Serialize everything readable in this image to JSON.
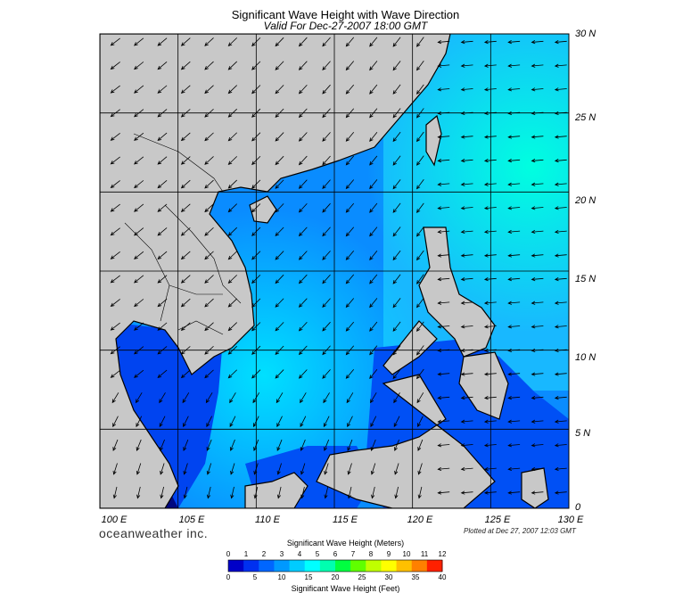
{
  "title": "Significant Wave Height with Wave Direction",
  "subtitle": "Valid For Dec-27-2007 18:00 GMT",
  "lat_labels": [
    "30 N",
    "25 N",
    "20 N",
    "15 N",
    "10 N",
    "5 N",
    "0"
  ],
  "lon_labels": [
    "100 E",
    "105 E",
    "110 E",
    "115 E",
    "120 E",
    "125 E",
    "130 E"
  ],
  "brand": "oceanweather inc.",
  "plotted": "Plotted at Dec 27, 2007 12:03 GMT",
  "legend": {
    "meters_title": "Significant Wave Height (Meters)",
    "feet_title": "Significant Wave Height (Feet)",
    "meters_ticks": [
      "0",
      "1",
      "2",
      "3",
      "4",
      "5",
      "6",
      "7",
      "8",
      "9",
      "10",
      "11",
      "12"
    ],
    "feet_ticks": [
      "0",
      "5",
      "10",
      "15",
      "20",
      "25",
      "30",
      "35",
      "40"
    ],
    "colors": [
      "#0000c8",
      "#0030f0",
      "#0066ff",
      "#0099ff",
      "#00ccff",
      "#00ffff",
      "#00ffb0",
      "#00ff40",
      "#60ff00",
      "#c0ff00",
      "#ffff00",
      "#ffc000",
      "#ff8000",
      "#ff2000"
    ]
  },
  "colors": {
    "land": "#c8c8c8",
    "coast": "#000000",
    "grid": "#000000",
    "arrow": "#000000"
  }
}
